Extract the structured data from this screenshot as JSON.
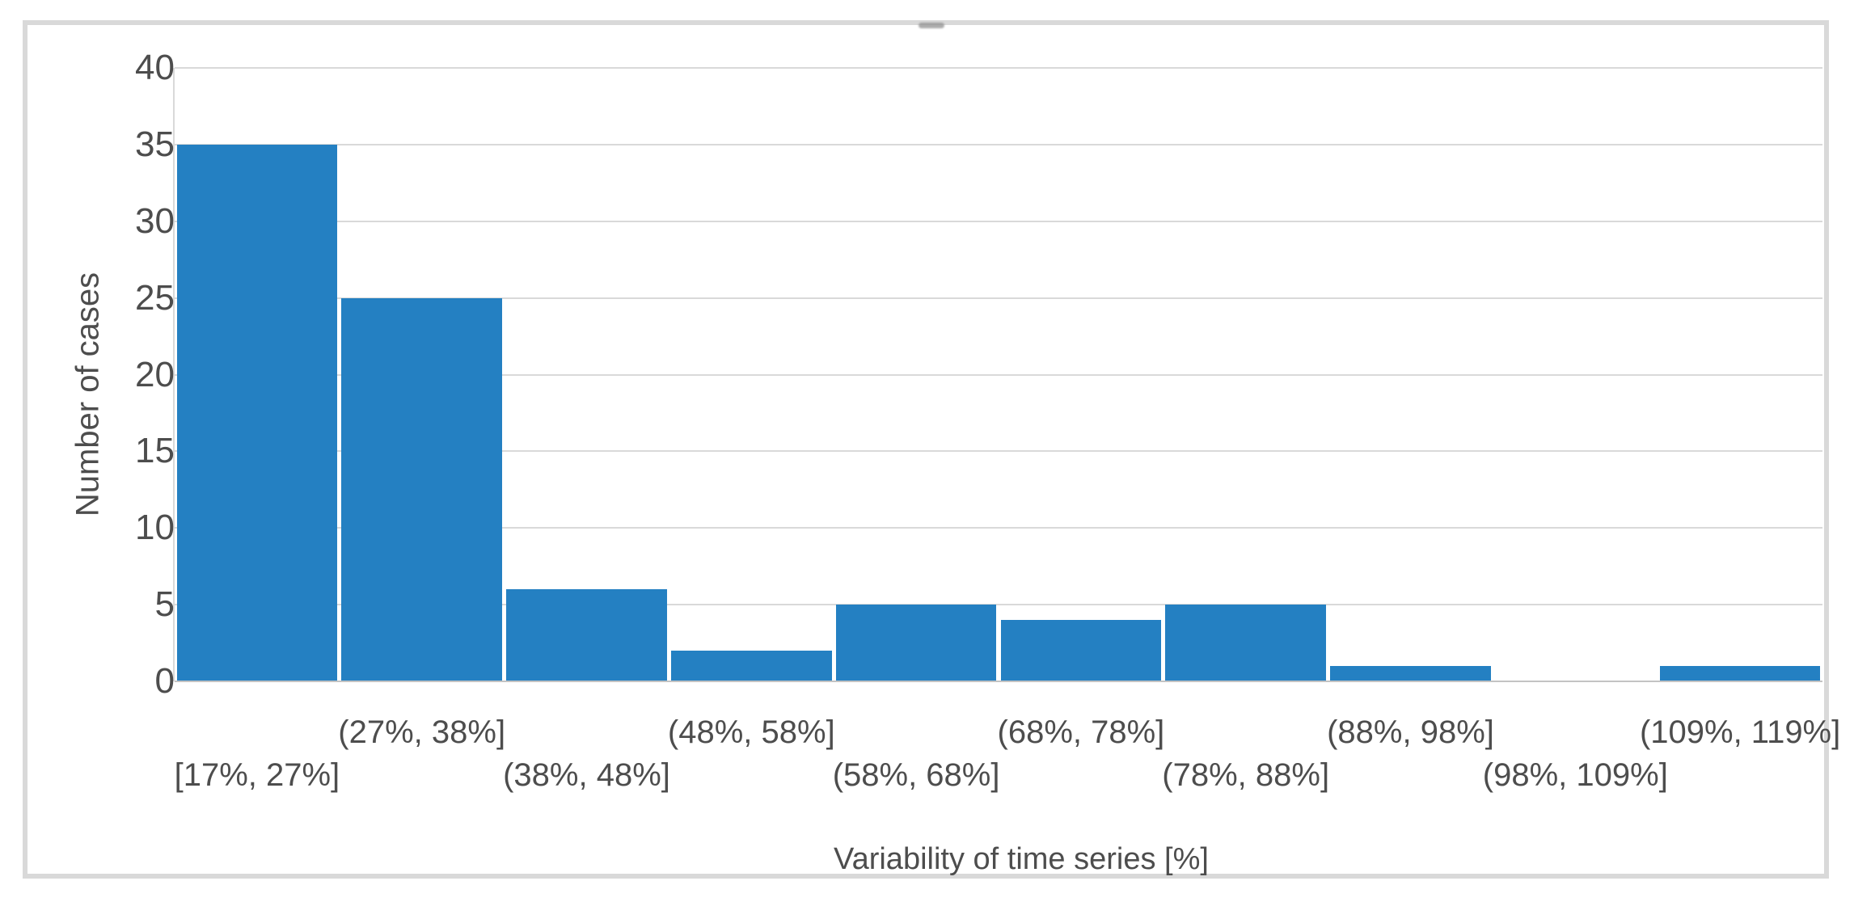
{
  "chart_data": {
    "type": "bar",
    "subtype": "histogram",
    "title": "",
    "xlabel": "Variability of time series [%]",
    "ylabel": "Number of cases",
    "categories": [
      "[17%, 27%]",
      "(27%, 38%]",
      "(38%, 48%]",
      "(48%, 58%]",
      "(58%, 68%]",
      "(68%, 78%]",
      "(78%, 88%]",
      "(88%, 98%]",
      "(98%, 109%]",
      "(109%, 119%]"
    ],
    "values": [
      35,
      25,
      6,
      2,
      5,
      4,
      5,
      1,
      0,
      1
    ],
    "ylim": [
      0,
      40
    ],
    "yticks": [
      0,
      5,
      10,
      15,
      20,
      25,
      30,
      35,
      40
    ],
    "grid": "horizontal",
    "legend": "none",
    "xtick_layout": "staggered-two-rows",
    "colors": {
      "bar": "#2480c2",
      "gridline": "#d9d9d9",
      "axis_line": "#c3c3c3",
      "text": "#4d4d4d",
      "frame_border": "#d9d9d9",
      "background": "#ffffff"
    }
  }
}
